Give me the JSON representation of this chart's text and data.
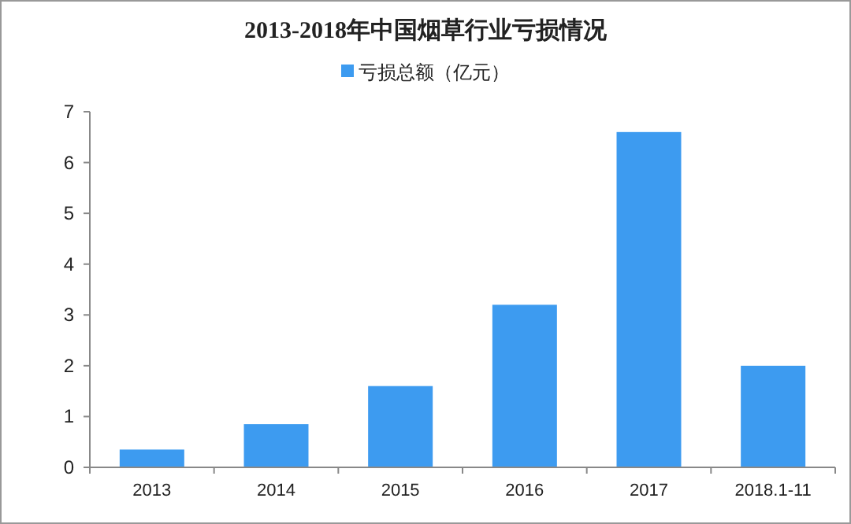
{
  "chart_data": {
    "type": "bar",
    "title": "2013-2018年中国烟草行业亏损情况",
    "categories": [
      "2013",
      "2014",
      "2015",
      "2016",
      "2017",
      "2018.1-11"
    ],
    "series": [
      {
        "name": "亏损总额（亿元）",
        "color": "#3d9bf0",
        "values": [
          0.35,
          0.85,
          1.6,
          3.2,
          6.6,
          2.0
        ]
      }
    ],
    "ylim": [
      0,
      7
    ],
    "yticks": [
      0,
      1,
      2,
      3,
      4,
      5,
      6,
      7
    ],
    "grid": false,
    "legend": "top"
  }
}
